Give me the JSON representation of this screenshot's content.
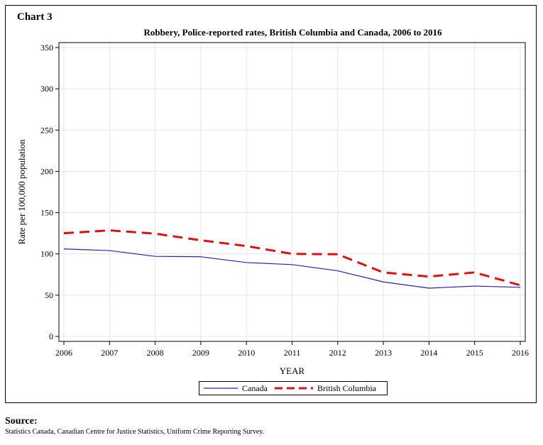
{
  "chart_label": "Chart 3",
  "source": {
    "title": "Source:",
    "text": "Statistics Canada, Canadian Centre for Justice Statistics, Uniform Crime Reporting Survey."
  },
  "chart_data": {
    "type": "line",
    "title": "Robbery, Police-reported rates, British Columbia and Canada, 2006 to 2016",
    "xlabel": "YEAR",
    "ylabel": "Rate per 100,000 population",
    "x": [
      2006,
      2007,
      2008,
      2009,
      2010,
      2011,
      2012,
      2013,
      2014,
      2015,
      2016
    ],
    "ylim": [
      0,
      350
    ],
    "yticks": [
      0,
      50,
      100,
      150,
      200,
      250,
      300,
      350
    ],
    "grid": true,
    "legend_position": "bottom",
    "series": [
      {
        "name": "Canada",
        "color": "#2b1fb3",
        "style": "solid",
        "values": [
          106,
          104,
          97,
          96.5,
          89.5,
          87,
          79.5,
          66,
          58.5,
          61,
          59.5
        ]
      },
      {
        "name": "British Columbia",
        "color": "#e01010",
        "style": "dashed",
        "values": [
          125,
          128.5,
          124.5,
          116.5,
          109.5,
          100,
          99.5,
          77.5,
          72.5,
          77.5,
          62
        ]
      }
    ]
  }
}
